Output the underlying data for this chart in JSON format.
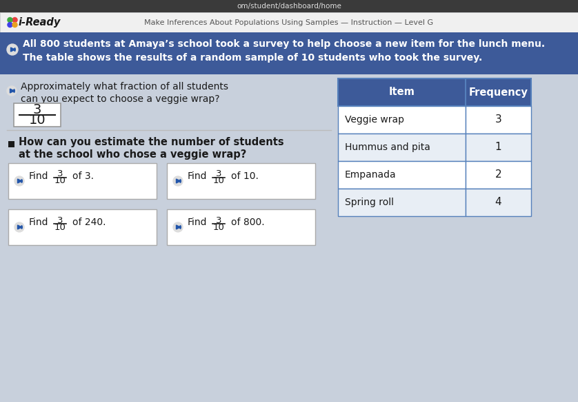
{
  "url_bar_text": "om/student/dashboard/home",
  "url_bar_bg": "#3a3a3a",
  "url_bar_text_color": "#dddddd",
  "header_bg": "#f0f0f0",
  "header_logo": "i-Ready",
  "header_logo_color": "#1a1a1a",
  "header_title": "Make Inferences About Populations Using Samples — Instruction — Level G",
  "header_title_color": "#555555",
  "banner_bg": "#3d5a99",
  "banner_text_line1": "All 800 students at Amaya’s school took a survey to help choose a new item for the lunch menu.",
  "banner_text_line2": "The table shows the results of a random sample of 10 students who took the survey.",
  "banner_text_color": "#ffffff",
  "content_bg": "#c8d0dc",
  "question1_line1": "Approximately what fraction of all students",
  "question1_line2": "can you expect to choose a veggie wrap?",
  "question1_color": "#1a1a1a",
  "fraction_num": "3",
  "fraction_den": "10",
  "fraction_box_bg": "#ffffff",
  "fraction_box_border": "#999999",
  "question2_line1": "How can you estimate the number of students",
  "question2_line2": "at the school who chose a veggie wrap?",
  "question2_color": "#1a1a1a",
  "table_header_bg": "#3d5a99",
  "table_header_text_color": "#ffffff",
  "table_row_bg_odd": "#ffffff",
  "table_row_bg_even": "#e8eef5",
  "table_border_color": "#5580bb",
  "table_items": [
    "Veggie wrap",
    "Hummus and pita",
    "Empanada",
    "Spring roll"
  ],
  "table_frequencies": [
    "3",
    "1",
    "2",
    "4"
  ],
  "button_bg": "#ffffff",
  "button_border": "#aaaaaa",
  "button_suffixes": [
    "of 3.",
    "of 10.",
    "of 240.",
    "of 800."
  ],
  "speaker_color": "#2255aa",
  "logo_dot_colors": [
    "#e84040",
    "#40aa40",
    "#4040e8",
    "#e8a020"
  ],
  "separator_color": "#bbbbbb"
}
